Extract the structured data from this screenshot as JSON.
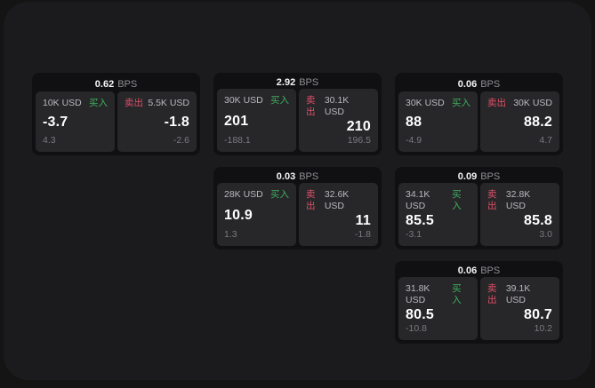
{
  "labels": {
    "bps_unit": "BPS",
    "buy": "买入",
    "sell": "卖出"
  },
  "colors": {
    "outer_bg": "#141414",
    "panel_bg": "#1b1b1d",
    "card_bg": "#101012",
    "pane_bg": "#27272a",
    "buy_green": "#3fae5c",
    "sell_red": "#df4f66",
    "primary_text": "#ffffff",
    "secondary_text": "#b9b9be",
    "muted_text": "#7a7a7f"
  },
  "cards": [
    {
      "bps": "0.62",
      "buy": {
        "amount": "10K USD",
        "value": "-3.7",
        "sub": "4.3"
      },
      "sell": {
        "amount": "5.5K USD",
        "value": "-1.8",
        "sub": "-2.6"
      }
    },
    {
      "bps": "2.92",
      "buy": {
        "amount": "30K USD",
        "value": "201",
        "sub": "-188.1"
      },
      "sell": {
        "amount": "30.1K USD",
        "value": "210",
        "sub": "196.5"
      }
    },
    {
      "bps": "0.06",
      "buy": {
        "amount": "30K USD",
        "value": "88",
        "sub": "-4.9"
      },
      "sell": {
        "amount": "30K USD",
        "value": "88.2",
        "sub": "4.7"
      }
    },
    {
      "bps": "0.03",
      "buy": {
        "amount": "28K USD",
        "value": "10.9",
        "sub": "1.3"
      },
      "sell": {
        "amount": "32.6K USD",
        "value": "11",
        "sub": "-1.8"
      }
    },
    {
      "bps": "0.09",
      "buy": {
        "amount": "34.1K USD",
        "value": "85.5",
        "sub": "-3.1"
      },
      "sell": {
        "amount": "32.8K USD",
        "value": "85.8",
        "sub": "3.0"
      }
    },
    {
      "bps": "0.06",
      "buy": {
        "amount": "31.8K USD",
        "value": "80.5",
        "sub": "-10.8"
      },
      "sell": {
        "amount": "39.1K USD",
        "value": "80.7",
        "sub": "10.2"
      }
    }
  ]
}
